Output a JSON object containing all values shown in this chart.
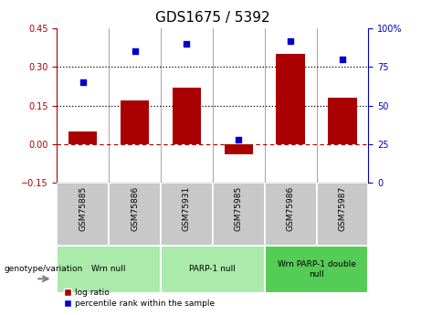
{
  "title": "GDS1675 / 5392",
  "samples": [
    "GSM75885",
    "GSM75886",
    "GSM75931",
    "GSM75985",
    "GSM75986",
    "GSM75987"
  ],
  "log_ratio": [
    0.05,
    0.17,
    0.22,
    -0.04,
    0.35,
    0.18
  ],
  "percentile_rank": [
    65,
    85,
    90,
    28,
    92,
    80
  ],
  "groups": [
    {
      "label": "Wrn null",
      "start": 0,
      "end": 2,
      "color": "#90EE90"
    },
    {
      "label": "PARP-1 null",
      "start": 2,
      "end": 4,
      "color": "#90EE90"
    },
    {
      "label": "Wrn PARP-1 double\nnull",
      "start": 4,
      "end": 6,
      "color": "#55CC55"
    }
  ],
  "ylim_left": [
    -0.15,
    0.45
  ],
  "ylim_right": [
    0,
    100
  ],
  "yticks_left": [
    -0.15,
    0.0,
    0.15,
    0.3,
    0.45
  ],
  "yticks_right": [
    0,
    25,
    50,
    75,
    100
  ],
  "hlines": [
    0.15,
    0.3
  ],
  "bar_color": "#AA0000",
  "dot_color": "#0000CC",
  "bar_width": 0.55,
  "sample_bg": "#C8C8C8",
  "group_color_light": "#AAEAAA",
  "group_color_dark": "#55CC55",
  "genotype_label": "genotype/variation",
  "legend_log_ratio": "log ratio",
  "legend_percentile": "percentile rank within the sample",
  "title_fontsize": 11,
  "tick_fontsize": 7,
  "label_fontsize": 7
}
